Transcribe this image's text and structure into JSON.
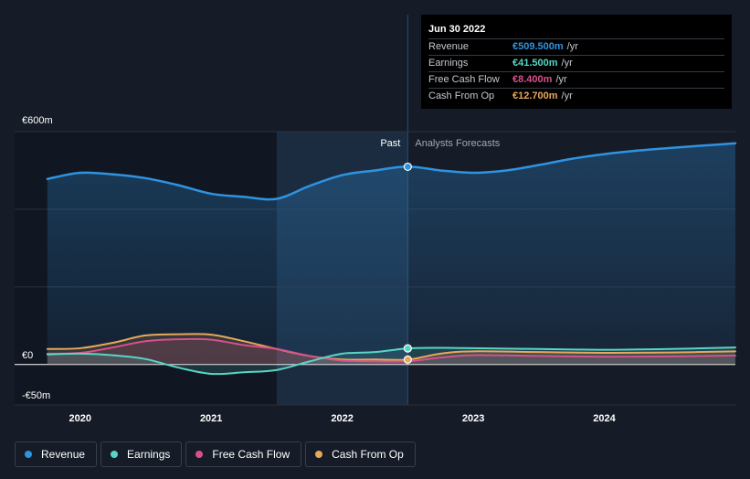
{
  "chart_data": {
    "type": "line",
    "title": "",
    "xlabel": "",
    "ylabel": "",
    "xlim": [
      2019.5,
      2025.0
    ],
    "ylim": [
      -50,
      600
    ],
    "y_tick_labels": [
      {
        "value": 600,
        "label": "€600m"
      },
      {
        "value": 0,
        "label": "€0"
      },
      {
        "value": -50,
        "label": "-€50m"
      }
    ],
    "x_ticks": [
      {
        "value": 2020,
        "label": "2020"
      },
      {
        "value": 2021,
        "label": "2021"
      },
      {
        "value": 2022,
        "label": "2022"
      },
      {
        "value": 2023,
        "label": "2023"
      },
      {
        "value": 2024,
        "label": "2024"
      }
    ],
    "past_label": "Past",
    "forecast_label": "Analysts Forecasts",
    "divider_x": 2022.5,
    "highlight_start_x": 2021.5,
    "series": [
      {
        "name": "Revenue",
        "color": "#2f93e0",
        "points": [
          [
            2019.75,
            478
          ],
          [
            2020.0,
            494
          ],
          [
            2020.25,
            490
          ],
          [
            2020.5,
            480
          ],
          [
            2020.75,
            462
          ],
          [
            2021.0,
            440
          ],
          [
            2021.25,
            432
          ],
          [
            2021.5,
            427
          ],
          [
            2021.75,
            460
          ],
          [
            2022.0,
            488
          ],
          [
            2022.25,
            500
          ],
          [
            2022.5,
            510
          ],
          [
            2022.75,
            500
          ],
          [
            2023.0,
            494
          ],
          [
            2023.25,
            500
          ],
          [
            2023.5,
            514
          ],
          [
            2023.75,
            530
          ],
          [
            2024.0,
            542
          ],
          [
            2024.25,
            551
          ],
          [
            2024.5,
            558
          ],
          [
            2024.75,
            564
          ],
          [
            2025.0,
            570
          ]
        ]
      },
      {
        "name": "Earnings",
        "color": "#58d5c4",
        "points": [
          [
            2019.75,
            26
          ],
          [
            2020.0,
            28
          ],
          [
            2020.25,
            24
          ],
          [
            2020.5,
            14
          ],
          [
            2020.75,
            -8
          ],
          [
            2021.0,
            -24
          ],
          [
            2021.25,
            -20
          ],
          [
            2021.5,
            -14
          ],
          [
            2021.75,
            8
          ],
          [
            2022.0,
            28
          ],
          [
            2022.25,
            32
          ],
          [
            2022.5,
            41.5
          ],
          [
            2022.75,
            43
          ],
          [
            2023.0,
            42
          ],
          [
            2023.5,
            40
          ],
          [
            2024.0,
            38
          ],
          [
            2024.5,
            40
          ],
          [
            2025.0,
            44
          ]
        ]
      },
      {
        "name": "Free Cash Flow",
        "color": "#d8508a",
        "points": [
          [
            2019.75,
            28
          ],
          [
            2020.0,
            30
          ],
          [
            2020.25,
            44
          ],
          [
            2020.5,
            60
          ],
          [
            2020.75,
            65
          ],
          [
            2021.0,
            64
          ],
          [
            2021.25,
            50
          ],
          [
            2021.5,
            40
          ],
          [
            2021.75,
            22
          ],
          [
            2022.0,
            10
          ],
          [
            2022.25,
            8
          ],
          [
            2022.5,
            8.4
          ],
          [
            2022.75,
            18
          ],
          [
            2023.0,
            24
          ],
          [
            2023.5,
            22
          ],
          [
            2024.0,
            20
          ],
          [
            2024.5,
            21
          ],
          [
            2025.0,
            23
          ]
        ]
      },
      {
        "name": "Cash From Op",
        "color": "#e8a75a",
        "points": [
          [
            2019.75,
            40
          ],
          [
            2020.0,
            42
          ],
          [
            2020.25,
            56
          ],
          [
            2020.5,
            75
          ],
          [
            2020.75,
            78
          ],
          [
            2021.0,
            77
          ],
          [
            2021.25,
            60
          ],
          [
            2021.5,
            40
          ],
          [
            2021.75,
            22
          ],
          [
            2022.0,
            13
          ],
          [
            2022.25,
            13
          ],
          [
            2022.5,
            12.7
          ],
          [
            2022.75,
            28
          ],
          [
            2023.0,
            34
          ],
          [
            2023.5,
            32
          ],
          [
            2024.0,
            30
          ],
          [
            2024.5,
            31
          ],
          [
            2025.0,
            34
          ]
        ]
      }
    ]
  },
  "tooltip": {
    "title": "Jun 30 2022",
    "rows": [
      {
        "label": "Revenue",
        "value": "€509.500m",
        "unit": "/yr",
        "color": "#2f93e0"
      },
      {
        "label": "Earnings",
        "value": "€41.500m",
        "unit": "/yr",
        "color": "#58d5c4"
      },
      {
        "label": "Free Cash Flow",
        "value": "€8.400m",
        "unit": "/yr",
        "color": "#d8508a"
      },
      {
        "label": "Cash From Op",
        "value": "€12.700m",
        "unit": "/yr",
        "color": "#e8a75a"
      }
    ]
  },
  "legend": [
    {
      "label": "Revenue",
      "color": "#2f93e0"
    },
    {
      "label": "Earnings",
      "color": "#58d5c4"
    },
    {
      "label": "Free Cash Flow",
      "color": "#d8508a"
    },
    {
      "label": "Cash From Op",
      "color": "#e8a75a"
    }
  ]
}
